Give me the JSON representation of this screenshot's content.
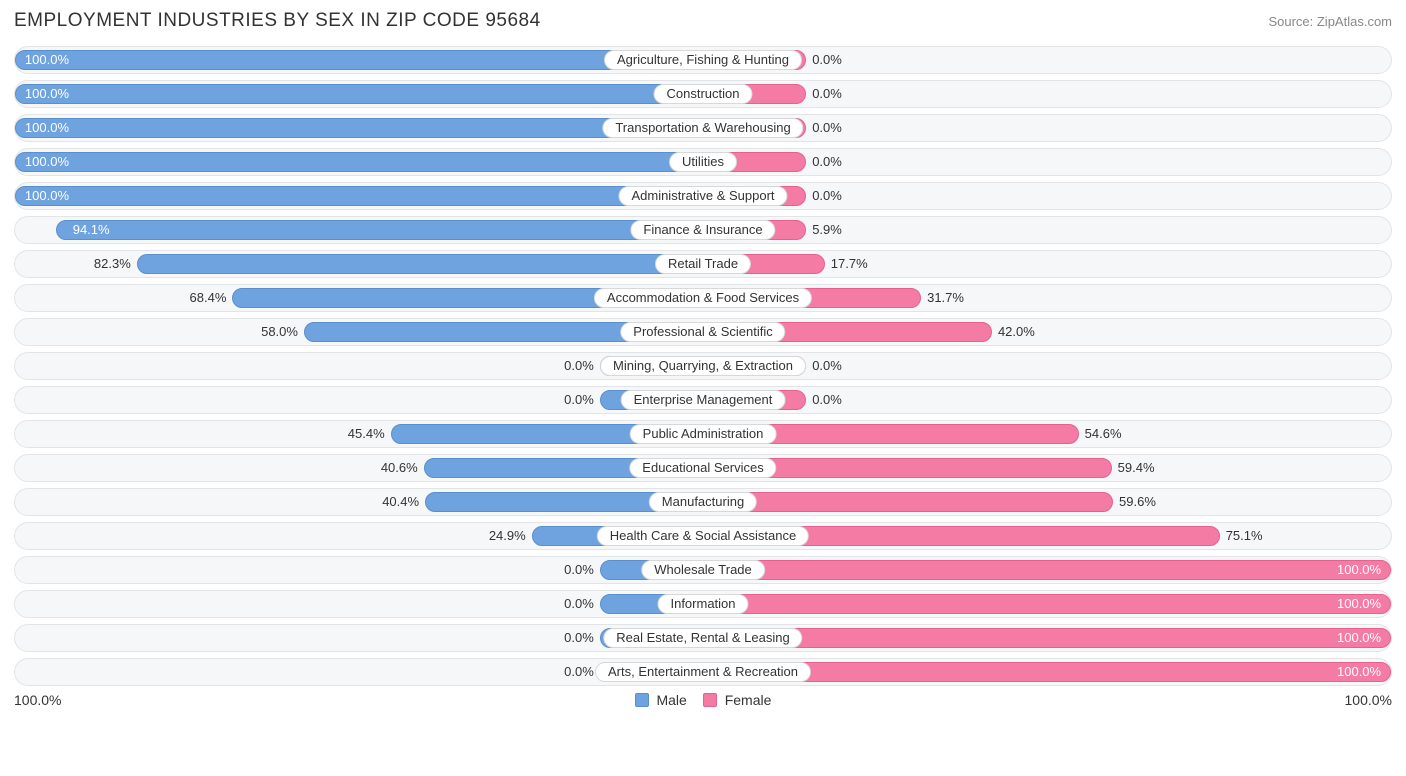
{
  "title": "EMPLOYMENT INDUSTRIES BY SEX IN ZIP CODE 95684",
  "source": "Source: ZipAtlas.com",
  "colors": {
    "male": "#6ea3e0",
    "male_border": "#5a8fc9",
    "female": "#f47ba3",
    "female_border": "#e5628e",
    "row_bg": "#f6f7f8",
    "row_border": "#e2e4e6",
    "text": "#333333",
    "text_light": "#888888",
    "label_bg": "#ffffff",
    "label_border": "#d6d8da"
  },
  "axis": {
    "left": "100.0%",
    "right": "100.0%"
  },
  "legend": {
    "male": "Male",
    "female": "Female"
  },
  "min_bar_pct": 15.0,
  "inside_threshold_pct": 85.0,
  "rows": [
    {
      "category": "Agriculture, Fishing & Hunting",
      "male_pct": 100.0,
      "male_label": "100.0%",
      "female_pct": 0.0,
      "female_label": "0.0%"
    },
    {
      "category": "Construction",
      "male_pct": 100.0,
      "male_label": "100.0%",
      "female_pct": 0.0,
      "female_label": "0.0%"
    },
    {
      "category": "Transportation & Warehousing",
      "male_pct": 100.0,
      "male_label": "100.0%",
      "female_pct": 0.0,
      "female_label": "0.0%"
    },
    {
      "category": "Utilities",
      "male_pct": 100.0,
      "male_label": "100.0%",
      "female_pct": 0.0,
      "female_label": "0.0%"
    },
    {
      "category": "Administrative & Support",
      "male_pct": 100.0,
      "male_label": "100.0%",
      "female_pct": 0.0,
      "female_label": "0.0%"
    },
    {
      "category": "Finance & Insurance",
      "male_pct": 94.1,
      "male_label": "94.1%",
      "female_pct": 5.9,
      "female_label": "5.9%"
    },
    {
      "category": "Retail Trade",
      "male_pct": 82.3,
      "male_label": "82.3%",
      "female_pct": 17.7,
      "female_label": "17.7%"
    },
    {
      "category": "Accommodation & Food Services",
      "male_pct": 68.4,
      "male_label": "68.4%",
      "female_pct": 31.7,
      "female_label": "31.7%"
    },
    {
      "category": "Professional & Scientific",
      "male_pct": 58.0,
      "male_label": "58.0%",
      "female_pct": 42.0,
      "female_label": "42.0%"
    },
    {
      "category": "Mining, Quarrying, & Extraction",
      "male_pct": 0.0,
      "male_label": "0.0%",
      "female_pct": 0.0,
      "female_label": "0.0%"
    },
    {
      "category": "Enterprise Management",
      "male_pct": 0.0,
      "male_label": "0.0%",
      "female_pct": 0.0,
      "female_label": "0.0%"
    },
    {
      "category": "Public Administration",
      "male_pct": 45.4,
      "male_label": "45.4%",
      "female_pct": 54.6,
      "female_label": "54.6%"
    },
    {
      "category": "Educational Services",
      "male_pct": 40.6,
      "male_label": "40.6%",
      "female_pct": 59.4,
      "female_label": "59.4%"
    },
    {
      "category": "Manufacturing",
      "male_pct": 40.4,
      "male_label": "40.4%",
      "female_pct": 59.6,
      "female_label": "59.6%"
    },
    {
      "category": "Health Care & Social Assistance",
      "male_pct": 24.9,
      "male_label": "24.9%",
      "female_pct": 75.1,
      "female_label": "75.1%"
    },
    {
      "category": "Wholesale Trade",
      "male_pct": 0.0,
      "male_label": "0.0%",
      "female_pct": 100.0,
      "female_label": "100.0%"
    },
    {
      "category": "Information",
      "male_pct": 0.0,
      "male_label": "0.0%",
      "female_pct": 100.0,
      "female_label": "100.0%"
    },
    {
      "category": "Real Estate, Rental & Leasing",
      "male_pct": 0.0,
      "male_label": "0.0%",
      "female_pct": 100.0,
      "female_label": "100.0%"
    },
    {
      "category": "Arts, Entertainment & Recreation",
      "male_pct": 0.0,
      "male_label": "0.0%",
      "female_pct": 100.0,
      "female_label": "100.0%"
    }
  ]
}
